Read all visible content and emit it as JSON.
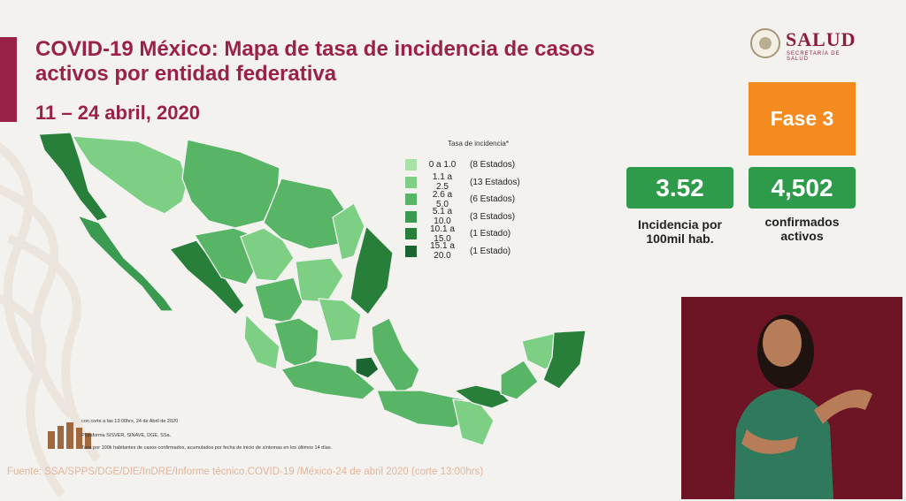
{
  "header": {
    "title_line1": "COVID-19 México: Mapa de tasa de incidencia de casos",
    "title_line2": "activos por entidad federativa",
    "date": "11 – 24 abril, 2020"
  },
  "logo": {
    "word": "SALUD",
    "sub": "SECRETARÍA DE SALUD",
    "icon": "seal-icon"
  },
  "phase_badge": {
    "label": "Fase 3",
    "color": "#f58a1f"
  },
  "stats": [
    {
      "value": "3.52",
      "label_line1": "Incidencia por",
      "label_line2": "100mil hab."
    },
    {
      "value": "4,502",
      "label_line1": "confirmados",
      "label_line2": "activos"
    }
  ],
  "legend": {
    "title": "Tasa de incidencia*",
    "items": [
      {
        "range": "0 a 1.0",
        "count": "(8 Estados)",
        "color": "#a8e0a5"
      },
      {
        "range": "1.1 a 2.5",
        "count": "(13 Estados)",
        "color": "#7dcf83"
      },
      {
        "range": "2.6 a 5.0",
        "count": "(6 Estados)",
        "color": "#58b566"
      },
      {
        "range": "5.1 a 10.0",
        "count": "(3 Estados)",
        "color": "#3a9a4f"
      },
      {
        "range": "10.1 a 15.0",
        "count": "(1 Estado)",
        "color": "#277f3a"
      },
      {
        "range": "15.1 a 20.0",
        "count": "(1 Estado)",
        "color": "#1b6530"
      }
    ]
  },
  "footnotes": {
    "line1": "con corte a las 13:00hrs, 24 de Abril de 2020",
    "line2": "Plataforma SISVER, SINAVE, DGE, SSa.",
    "line3": "Tasa por 100k habitantes de casos confirmados, acumulados por fecha de inicio de síntomas en los últimos 14 días."
  },
  "source": "Fuente: SSA/SPPS/DGE/DIE/InDRE/Informe técnico.COVID-19 /México-24 de abril 2020 (corte 13:00hrs)",
  "colors": {
    "brand": "#9b2247",
    "accent_green": "#2e9b4a",
    "background": "#f4f2ef"
  }
}
